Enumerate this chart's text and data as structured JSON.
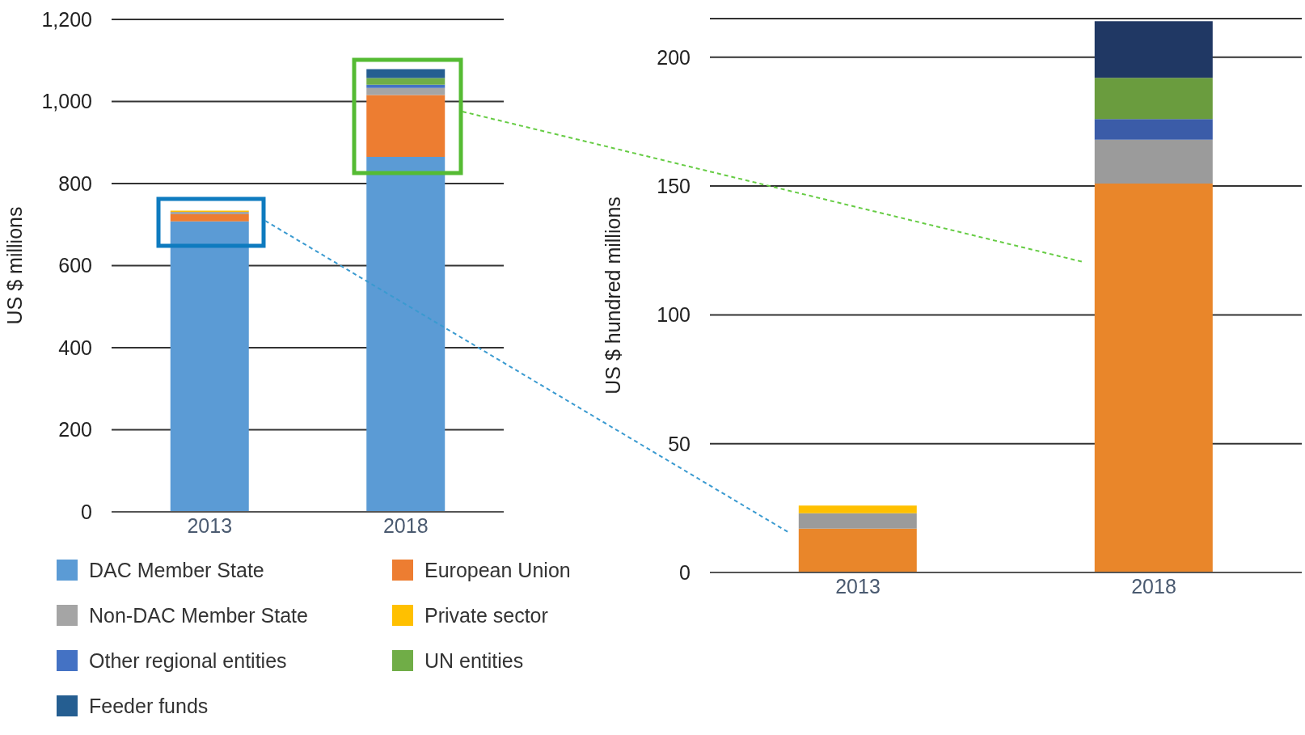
{
  "chart_data": [
    {
      "type": "bar",
      "ylabel": "US $ millions",
      "categories": [
        "2013",
        "2018"
      ],
      "stacked": true,
      "ylim": [
        0,
        1200
      ],
      "yticks": [
        0,
        200,
        400,
        600,
        800,
        {
          "value": 1000,
          "label": "1,000"
        },
        {
          "value": 1200,
          "label": "1,200"
        }
      ],
      "grid": "y",
      "legend": "bottom",
      "series": [
        {
          "name": "DAC Member State",
          "color": "#5b9bd5",
          "values": [
            708,
            865
          ]
        },
        {
          "name": "European Union",
          "color": "#ed7d31",
          "values": [
            17,
            151
          ]
        },
        {
          "name": "Non-DAC Member State",
          "color": "#a5a5a5",
          "values": [
            6,
            17
          ]
        },
        {
          "name": "Private sector",
          "color": "#ffc000",
          "values": [
            3,
            0
          ]
        },
        {
          "name": "Other regional entities",
          "color": "#4472c4",
          "values": [
            0,
            8
          ]
        },
        {
          "name": "UN entities",
          "color": "#70ad47",
          "values": [
            0,
            16
          ]
        },
        {
          "name": "Feeder funds",
          "color": "#255e91",
          "values": [
            0,
            22
          ]
        }
      ]
    },
    {
      "type": "bar",
      "ylabel": "US $ hundred millions",
      "categories": [
        "2013",
        "2018"
      ],
      "stacked": true,
      "ylim": [
        0,
        215
      ],
      "yticks": [
        0,
        50,
        100,
        150,
        200
      ],
      "grid": "y",
      "series": [
        {
          "color": "#e9862a",
          "values": [
            17,
            151
          ]
        },
        {
          "color": "#9b9b9b",
          "values": [
            6,
            17
          ]
        },
        {
          "color": "#ffc000",
          "values": [
            3,
            0
          ]
        },
        {
          "color": "#3b5ca8",
          "values": [
            0,
            8
          ]
        },
        {
          "color": "#6a9c3e",
          "values": [
            0,
            16
          ]
        },
        {
          "color": "#203864",
          "values": [
            0,
            22
          ]
        }
      ]
    }
  ]
}
